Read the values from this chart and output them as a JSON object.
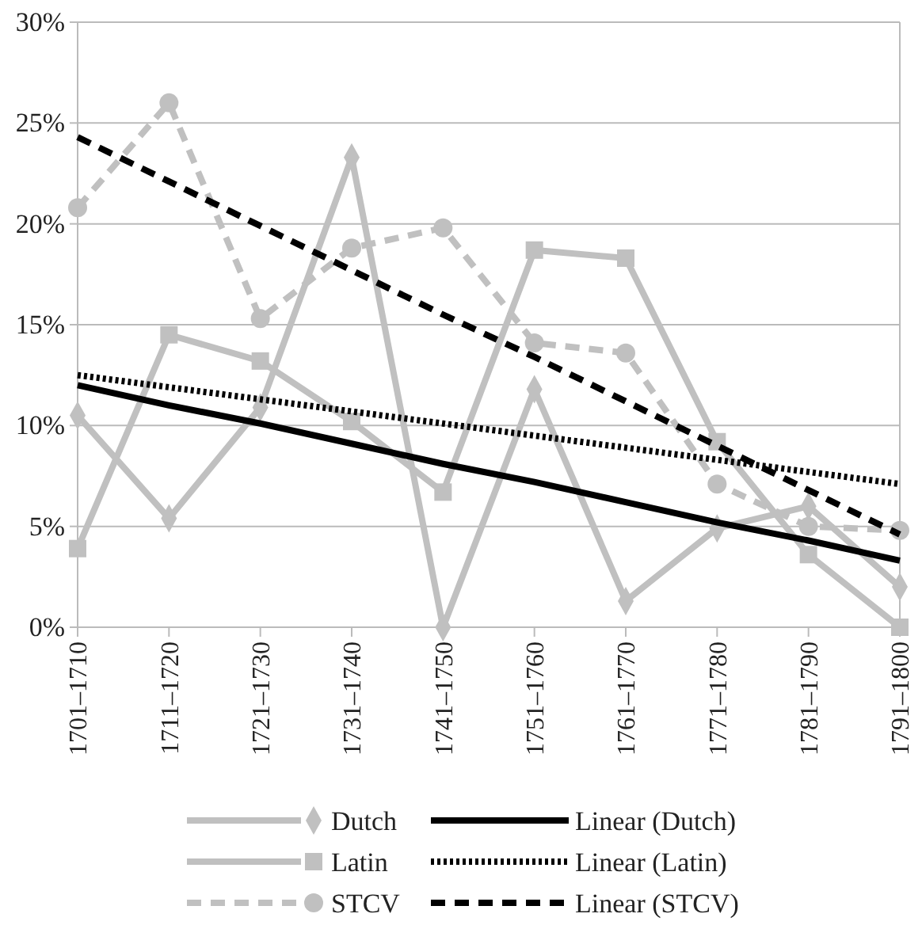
{
  "chart_data": {
    "type": "line",
    "categories": [
      "1701–1710",
      "1711–1720",
      "1721–1730",
      "1731–1740",
      "1741–1750",
      "1751–1760",
      "1761–1770",
      "1771–1780",
      "1781–1790",
      "1791–1800"
    ],
    "series": [
      {
        "name": "Dutch",
        "color": "#c0c0c0",
        "marker": "diamond",
        "line_style": "solid",
        "values": [
          10.5,
          5.4,
          10.9,
          23.3,
          0,
          11.8,
          1.3,
          4.9,
          6.0,
          2.0
        ]
      },
      {
        "name": "Latin",
        "color": "#c0c0c0",
        "marker": "square",
        "line_style": "solid",
        "values": [
          3.9,
          14.5,
          13.2,
          10.2,
          6.7,
          18.7,
          18.3,
          9.2,
          3.6,
          0
        ]
      },
      {
        "name": "STCV",
        "color": "#c0c0c0",
        "marker": "circle",
        "line_style": "dashed",
        "values": [
          20.8,
          26.0,
          15.3,
          18.8,
          19.8,
          14.1,
          13.6,
          7.1,
          5.0,
          4.8
        ]
      },
      {
        "name": "Linear (Dutch)",
        "color": "#000000",
        "marker": "none",
        "line_style": "solid",
        "values": [
          12.0,
          11.0,
          10.1,
          9.1,
          8.1,
          7.2,
          6.2,
          5.2,
          4.3,
          3.3
        ]
      },
      {
        "name": "Linear (Latin)",
        "color": "#000000",
        "marker": "none",
        "line_style": "dotted",
        "values": [
          12.5,
          11.9,
          11.3,
          10.7,
          10.1,
          9.5,
          8.9,
          8.3,
          7.7,
          7.1
        ]
      },
      {
        "name": "Linear (STCV)",
        "color": "#000000",
        "marker": "none",
        "line_style": "dashed",
        "values": [
          24.3,
          22.1,
          19.9,
          17.7,
          15.5,
          13.4,
          11.2,
          9.0,
          6.8,
          4.6
        ]
      }
    ],
    "ylim": [
      0,
      30
    ],
    "yticks": [
      {
        "value": 0,
        "label": "0%"
      },
      {
        "value": 5,
        "label": "5%"
      },
      {
        "value": 10,
        "label": "10%"
      },
      {
        "value": 15,
        "label": "15%"
      },
      {
        "value": 20,
        "label": "20%"
      },
      {
        "value": 25,
        "label": "25%"
      },
      {
        "value": 30,
        "label": "30%"
      }
    ],
    "grid": "y",
    "legend": "bottom"
  }
}
